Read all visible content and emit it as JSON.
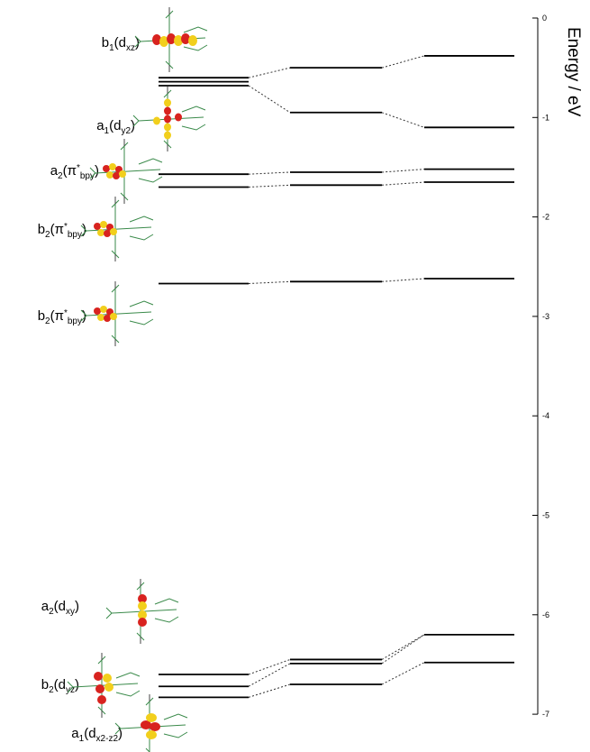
{
  "axis": {
    "title": "Energy / eV",
    "ticks": [
      "0",
      "-1",
      "-2",
      "-3",
      "-4",
      "-5",
      "-6",
      "-7"
    ]
  },
  "orbitals": [
    {
      "label": "b1(dxz)",
      "symmetry": "b",
      "sym_sub": "1",
      "type": "d",
      "type_sub": "xz",
      "star": false
    },
    {
      "label": "a1(dy2)",
      "symmetry": "a",
      "sym_sub": "1",
      "type": "d",
      "type_sub": "y2",
      "star": false
    },
    {
      "label": "a2(π*bpy)",
      "symmetry": "a",
      "sym_sub": "2",
      "type": "π",
      "type_sub": "bpy",
      "star": true
    },
    {
      "label": "b2(π*bpy)",
      "symmetry": "b",
      "sym_sub": "2",
      "type": "π",
      "type_sub": "bpy",
      "star": true
    },
    {
      "label": "b2(π*bpy)",
      "symmetry": "b",
      "sym_sub": "2",
      "type": "π",
      "type_sub": "bpy",
      "star": true
    },
    {
      "label": "a2(dxy)",
      "symmetry": "a",
      "sym_sub": "2",
      "type": "d",
      "type_sub": "xy",
      "star": false
    },
    {
      "label": "b2(dyz)",
      "symmetry": "b",
      "sym_sub": "2",
      "type": "d",
      "type_sub": "yz",
      "star": false
    },
    {
      "label": "a1(dx2-z2)",
      "symmetry": "a",
      "sym_sub": "1",
      "type": "d",
      "type_sub": "x2-z2",
      "star": false
    }
  ],
  "chart_data": {
    "type": "energy-level diagram",
    "ylabel": "Energy / eV",
    "ylim": [
      -7,
      0
    ],
    "columns": [
      {
        "levels": [
          -0.6,
          -0.64,
          -0.68,
          -1.57,
          -1.7,
          -2.67,
          -6.6,
          -6.72,
          -6.83
        ]
      },
      {
        "levels": [
          -0.5,
          -0.95,
          -1.55,
          -1.68,
          -2.65,
          -6.45,
          -6.49,
          -6.7
        ]
      },
      {
        "levels": [
          -0.38,
          -1.1,
          -1.52,
          -1.65,
          -2.62,
          -6.2,
          -6.48
        ]
      }
    ],
    "connections": [
      {
        "from": [
          0,
          0
        ],
        "to": [
          1,
          0
        ]
      },
      {
        "from": [
          0,
          2
        ],
        "to": [
          1,
          1
        ]
      },
      {
        "from": [
          1,
          0
        ],
        "to": [
          2,
          0
        ]
      },
      {
        "from": [
          1,
          1
        ],
        "to": [
          2,
          1
        ]
      },
      {
        "from": [
          0,
          3
        ],
        "to": [
          1,
          2
        ]
      },
      {
        "from": [
          0,
          4
        ],
        "to": [
          1,
          3
        ]
      },
      {
        "from": [
          1,
          2
        ],
        "to": [
          2,
          2
        ]
      },
      {
        "from": [
          1,
          3
        ],
        "to": [
          2,
          3
        ]
      },
      {
        "from": [
          0,
          5
        ],
        "to": [
          1,
          4
        ]
      },
      {
        "from": [
          1,
          4
        ],
        "to": [
          2,
          4
        ]
      },
      {
        "from": [
          0,
          6
        ],
        "to": [
          1,
          5
        ]
      },
      {
        "from": [
          0,
          7
        ],
        "to": [
          1,
          6
        ]
      },
      {
        "from": [
          0,
          8
        ],
        "to": [
          1,
          7
        ]
      },
      {
        "from": [
          1,
          5
        ],
        "to": [
          2,
          5
        ]
      },
      {
        "from": [
          1,
          6
        ],
        "to": [
          2,
          5
        ]
      },
      {
        "from": [
          1,
          7
        ],
        "to": [
          2,
          6
        ]
      }
    ]
  }
}
